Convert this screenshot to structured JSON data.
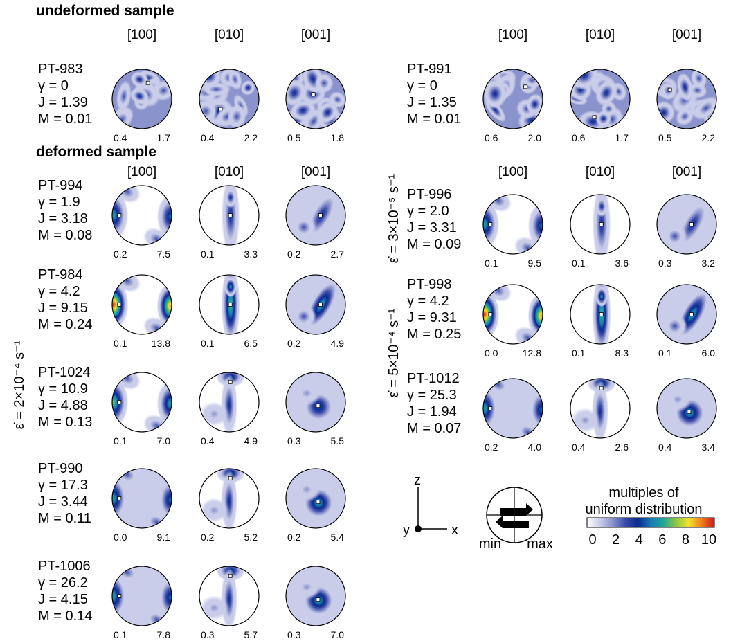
{
  "sections": {
    "undeformed": "undeformed sample",
    "deformed": "deformed sample"
  },
  "axes": [
    "[100]",
    "[010]",
    "[001]"
  ],
  "strain_rates": {
    "left": "ε̇ = 2×10⁻⁴ s⁻¹",
    "right_top": "ε̇ = 3×10⁻⁵ s⁻¹",
    "right_bottom": "ε̇ = 5×10⁻⁴ s⁻¹"
  },
  "samples": [
    {
      "name": "PT-983",
      "gamma": "γ = 0",
      "J": "J = 1.39",
      "M": "M = 0.01",
      "type": "random",
      "ranges": [
        [
          "0.4",
          "1.7"
        ],
        [
          "0.4",
          "2.2"
        ],
        [
          "0.5",
          "1.8"
        ]
      ]
    },
    {
      "name": "PT-991",
      "gamma": "γ = 0",
      "J": "J = 1.35",
      "M": "M = 0.01",
      "type": "random",
      "ranges": [
        [
          "0.6",
          "2.0"
        ],
        [
          "0.6",
          "1.7"
        ],
        [
          "0.5",
          "2.2"
        ]
      ]
    },
    {
      "name": "PT-994",
      "gamma": "γ = 1.9",
      "J": "J = 3.18",
      "M": "M = 0.08",
      "type": "weak",
      "ranges": [
        [
          "0.2",
          "7.5"
        ],
        [
          "0.1",
          "3.3"
        ],
        [
          "0.2",
          "2.7"
        ]
      ]
    },
    {
      "name": "PT-996",
      "gamma": "γ = 2.0",
      "J": "J = 3.31",
      "M": "M = 0.09",
      "type": "weak",
      "ranges": [
        [
          "0.1",
          "9.5"
        ],
        [
          "0.1",
          "3.6"
        ],
        [
          "0.3",
          "3.2"
        ]
      ]
    },
    {
      "name": "PT-984",
      "gamma": "γ = 4.2",
      "J": "J = 9.15",
      "M": "M = 0.24",
      "type": "strong",
      "ranges": [
        [
          "0.1",
          "13.8"
        ],
        [
          "0.1",
          "6.5"
        ],
        [
          "0.2",
          "4.9"
        ]
      ]
    },
    {
      "name": "PT-998",
      "gamma": "γ = 4.2",
      "J": "J = 9.31",
      "M": "M = 0.25",
      "type": "strong",
      "ranges": [
        [
          "0.0",
          "12.8"
        ],
        [
          "0.1",
          "8.3"
        ],
        [
          "0.1",
          "6.0"
        ]
      ]
    },
    {
      "name": "PT-1024",
      "gamma": "γ = 10.9",
      "J": "J = 4.88",
      "M": "M = 0.13",
      "type": "mid",
      "ranges": [
        [
          "0.1",
          "7.0"
        ],
        [
          "0.4",
          "4.9"
        ],
        [
          "0.3",
          "5.5"
        ]
      ]
    },
    {
      "name": "PT-1012",
      "gamma": "γ = 25.3",
      "J": "J = 1.94",
      "M": "M = 0.07",
      "type": "late",
      "ranges": [
        [
          "0.2",
          "4.0"
        ],
        [
          "0.4",
          "2.6"
        ],
        [
          "0.4",
          "3.4"
        ]
      ]
    },
    {
      "name": "PT-990",
      "gamma": "γ = 17.3",
      "J": "J = 3.44",
      "M": "M = 0.11",
      "type": "late",
      "ranges": [
        [
          "0.0",
          "9.1"
        ],
        [
          "0.2",
          "5.2"
        ],
        [
          "0.2",
          "5.4"
        ]
      ]
    },
    {
      "name": "PT-1006",
      "gamma": "γ = 26.2",
      "J": "J = 4.15",
      "M": "M = 0.14",
      "type": "late",
      "ranges": [
        [
          "0.1",
          "7.8"
        ],
        [
          "0.3",
          "5.7"
        ],
        [
          "0.3",
          "7.0"
        ]
      ]
    }
  ],
  "frame": {
    "z": "z",
    "y": "y",
    "x": "x"
  },
  "legend": {
    "min_label": "min",
    "max_label": "max",
    "title_line1": "multiples of",
    "title_line2": "uniform distribution",
    "ticks": [
      "0",
      "2",
      "4",
      "6",
      "8",
      "10"
    ],
    "colors": [
      "#ffffff",
      "#c9cde9",
      "#8a93cc",
      "#3b4bab",
      "#0a2a8e",
      "#1a78b4",
      "#1fa79a",
      "#8ec63f",
      "#f2e12b",
      "#f07d1e",
      "#d3171b"
    ]
  }
}
